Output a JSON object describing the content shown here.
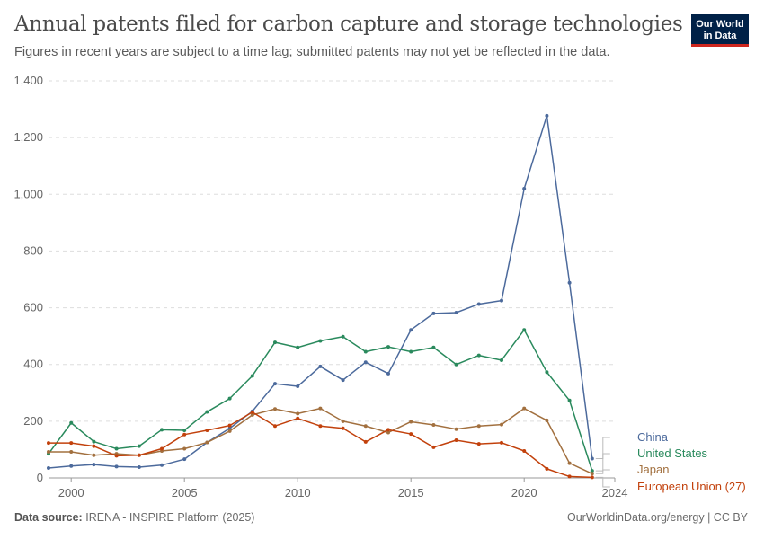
{
  "header": {
    "title": "Annual patents filed for carbon capture and storage technologies",
    "subtitle": "Figures in recent years are subject to a time lag; submitted patents may not yet be reflected in the data.",
    "logo_line1": "Our World",
    "logo_line2": "in Data"
  },
  "footer": {
    "source_label": "Data source:",
    "source_text": "IRENA - INSPIRE Platform (2025)",
    "credit": "OurWorldinData.org/energy | CC BY"
  },
  "chart_data": {
    "type": "line",
    "title": "Annual patents filed for carbon capture and storage technologies",
    "x": [
      1999,
      2000,
      2001,
      2002,
      2003,
      2004,
      2005,
      2006,
      2007,
      2008,
      2009,
      2010,
      2011,
      2012,
      2013,
      2014,
      2015,
      2016,
      2017,
      2018,
      2019,
      2020,
      2021,
      2022,
      2023,
      2024
    ],
    "xlim": [
      1999,
      2024
    ],
    "ylim": [
      0,
      1400
    ],
    "x_ticks": [
      2000,
      2005,
      2010,
      2015,
      2020,
      2024
    ],
    "y_ticks": [
      0,
      200,
      400,
      600,
      800,
      1000,
      1200,
      1400
    ],
    "y_tick_labels": [
      "0",
      "200",
      "400",
      "600",
      "800",
      "1,000",
      "1,200",
      "1,400"
    ],
    "grid": "horizontal-dashed",
    "legend": "right-end-labels",
    "series": [
      {
        "name": "China",
        "color": "#4c6a9c",
        "values": [
          35,
          42,
          47,
          40,
          38,
          45,
          66,
          125,
          175,
          235,
          332,
          323,
          393,
          345,
          408,
          368,
          522,
          580,
          583,
          613,
          625,
          1020,
          1277,
          688,
          68,
          null
        ]
      },
      {
        "name": "United States",
        "color": "#2a8a5d",
        "values": [
          85,
          194,
          128,
          103,
          112,
          170,
          168,
          233,
          280,
          360,
          478,
          460,
          483,
          498,
          445,
          462,
          445,
          460,
          400,
          432,
          415,
          522,
          373,
          273,
          25,
          null
        ]
      },
      {
        "name": "Japan",
        "color": "#a2703f",
        "values": [
          92,
          92,
          80,
          85,
          80,
          95,
          103,
          125,
          165,
          222,
          243,
          227,
          245,
          200,
          183,
          160,
          198,
          187,
          172,
          183,
          188,
          245,
          203,
          52,
          15,
          null
        ]
      },
      {
        "name": "European Union (27)",
        "color": "#c2410c",
        "values": [
          123,
          123,
          112,
          78,
          80,
          103,
          153,
          168,
          185,
          232,
          183,
          210,
          183,
          175,
          127,
          170,
          155,
          108,
          133,
          120,
          124,
          95,
          32,
          5,
          2,
          null
        ]
      }
    ]
  }
}
